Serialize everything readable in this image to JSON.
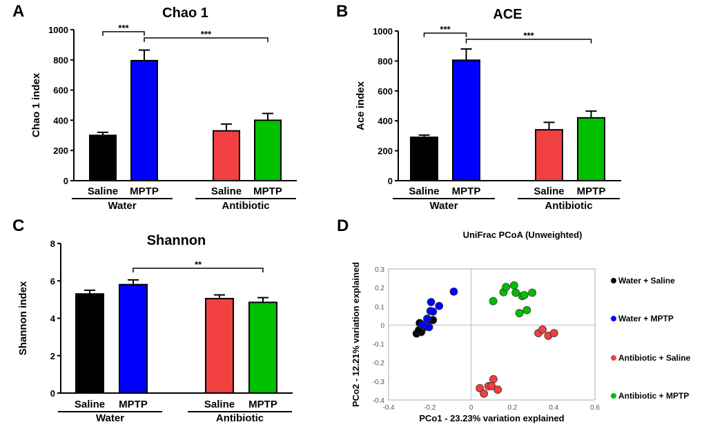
{
  "colors": {
    "water_saline": "#000000",
    "water_mptp": "#0000ff",
    "antibiotic_saline": "#f04040",
    "antibiotic_mptp": "#00c000"
  },
  "chart_data": [
    {
      "panel": "A",
      "type": "bar",
      "title": "Chao 1",
      "ylabel": "Chao 1 index",
      "ylim": [
        0,
        1000
      ],
      "yticks": [
        0,
        200,
        400,
        600,
        800,
        1000
      ],
      "categories": [
        "Saline",
        "MPTP",
        "Saline",
        "MPTP"
      ],
      "groups": [
        "Water",
        "Antibiotic"
      ],
      "values": [
        300,
        795,
        330,
        400
      ],
      "errors": [
        20,
        70,
        45,
        45
      ],
      "significance": [
        {
          "from": 0,
          "to": 1,
          "label": "***"
        },
        {
          "from": 1,
          "to": 3,
          "label": "***"
        }
      ]
    },
    {
      "panel": "B",
      "type": "bar",
      "title": "ACE",
      "ylabel": "Ace index",
      "ylim": [
        0,
        1000
      ],
      "yticks": [
        0,
        200,
        400,
        600,
        800,
        1000
      ],
      "categories": [
        "Saline",
        "MPTP",
        "Saline",
        "MPTP"
      ],
      "groups": [
        "Water",
        "Antibiotic"
      ],
      "values": [
        290,
        805,
        340,
        420
      ],
      "errors": [
        15,
        75,
        50,
        45
      ],
      "significance": [
        {
          "from": 0,
          "to": 1,
          "label": "***"
        },
        {
          "from": 1,
          "to": 3,
          "label": "***"
        }
      ]
    },
    {
      "panel": "C",
      "type": "bar",
      "title": "Shannon",
      "ylabel": "Shannon index",
      "ylim": [
        0,
        8
      ],
      "yticks": [
        0,
        2,
        4,
        6,
        8
      ],
      "categories": [
        "Saline",
        "MPTP",
        "Saline",
        "MPTP"
      ],
      "groups": [
        "Water",
        "Antibiotic"
      ],
      "values": [
        5.3,
        5.8,
        5.05,
        4.85
      ],
      "errors": [
        0.2,
        0.25,
        0.2,
        0.25
      ],
      "significance": [
        {
          "from": 1,
          "to": 3,
          "label": "**"
        }
      ]
    },
    {
      "panel": "D",
      "type": "scatter",
      "title": "UniFrac PCoA (Unweighted)",
      "xlabel": "PCo1 - 23.23% variation explained",
      "ylabel": "PCo2 - 12.21% variation explained",
      "xlim": [
        -0.4,
        0.6
      ],
      "ylim": [
        -0.4,
        0.3
      ],
      "xticks": [
        "-0.4",
        "-0.2",
        "0",
        "0.2",
        "0.4",
        "0.6"
      ],
      "yticks": [
        "-0.4",
        "-0.3",
        "-0.2",
        "-0.1",
        "0",
        "0.1",
        "0.2",
        "0.3"
      ],
      "legend_position": "right",
      "series": [
        {
          "name": "Water + Saline",
          "color": "#000000",
          "points": [
            [
              -0.264,
              -0.045
            ],
            [
              -0.249,
              0.011
            ],
            [
              -0.236,
              -0.021
            ],
            [
              -0.242,
              -0.037
            ],
            [
              -0.185,
              0.027
            ],
            [
              -0.213,
              0.016
            ],
            [
              -0.253,
              -0.027
            ],
            [
              -0.225,
              -0.005
            ]
          ]
        },
        {
          "name": "Water + MPTP",
          "color": "#0000ff",
          "points": [
            [
              -0.084,
              0.179
            ],
            [
              -0.194,
              0.123
            ],
            [
              -0.155,
              0.102
            ],
            [
              -0.197,
              0.075
            ],
            [
              -0.185,
              0.072
            ],
            [
              -0.213,
              0.034
            ],
            [
              -0.236,
              0.002
            ],
            [
              -0.204,
              -0.011
            ]
          ]
        },
        {
          "name": "Antibiotic + Saline",
          "color": "#f04040",
          "points": [
            [
              0.326,
              -0.043
            ],
            [
              0.346,
              -0.024
            ],
            [
              0.374,
              -0.057
            ],
            [
              0.402,
              -0.043
            ],
            [
              0.108,
              -0.289
            ],
            [
              0.084,
              -0.326
            ],
            [
              0.099,
              -0.326
            ],
            [
              0.042,
              -0.337
            ],
            [
              0.062,
              -0.366
            ],
            [
              0.129,
              -0.345
            ]
          ]
        },
        {
          "name": "Antibiotic + MPTP",
          "color": "#00c000",
          "points": [
            [
              0.107,
              0.128
            ],
            [
              0.157,
              0.176
            ],
            [
              0.169,
              0.203
            ],
            [
              0.208,
              0.212
            ],
            [
              0.216,
              0.173
            ],
            [
              0.247,
              0.155
            ],
            [
              0.258,
              0.16
            ],
            [
              0.296,
              0.173
            ],
            [
              0.234,
              0.064
            ],
            [
              0.27,
              0.08
            ]
          ]
        }
      ]
    }
  ]
}
